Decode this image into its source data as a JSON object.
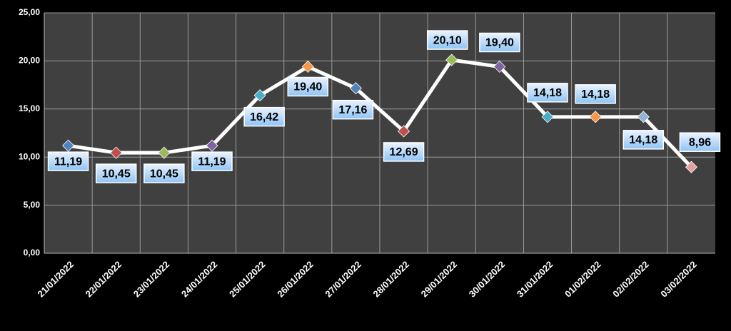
{
  "chart_data": {
    "type": "line",
    "categories": [
      "21/01/2022",
      "22/01/2022",
      "23/01/2022",
      "24/01/2022",
      "25/01/2022",
      "26/01/2022",
      "27/01/2022",
      "28/01/2022",
      "29/01/2022",
      "30/01/2022",
      "31/01/2022",
      "01/02/2022",
      "02/02/2022",
      "03/02/2022"
    ],
    "series": [
      {
        "color": "#ffffff",
        "values": [
          11.19,
          10.45,
          10.45,
          11.19,
          16.42,
          19.4,
          17.16,
          12.69,
          20.1,
          19.4,
          14.18,
          14.18,
          14.18,
          8.96
        ],
        "value_labels": [
          "11,19",
          "10,45",
          "10,45",
          "11,19",
          "16,42",
          "19,40",
          "17,16",
          "12,69",
          "20,10",
          "19,40",
          "14,18",
          "14,18",
          "14,18",
          "8,96"
        ],
        "marker_colors": [
          "#4f81bd",
          "#c0504d",
          "#9bbb59",
          "#8064a2",
          "#4bacc6",
          "#f79646",
          "#4f81bd",
          "#c0504d",
          "#9bbb59",
          "#8064a2",
          "#4bacc6",
          "#f79646",
          "#95b3d7",
          "#e6a0a0"
        ]
      }
    ],
    "ylim": [
      0,
      25
    ],
    "yticks": [
      {
        "value": 0,
        "label": "0,00"
      },
      {
        "value": 5,
        "label": "5,00"
      },
      {
        "value": 10,
        "label": "10,00"
      },
      {
        "value": 15,
        "label": "15,00"
      },
      {
        "value": 20,
        "label": "20,00"
      },
      {
        "value": 25,
        "label": "25,00"
      }
    ],
    "grid": true
  }
}
